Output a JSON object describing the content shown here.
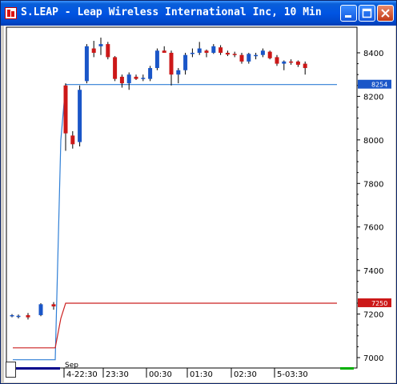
{
  "window": {
    "title": "S.LEAP - Leap Wireless International Inc, 10 Min",
    "controls": [
      "minimize",
      "maximize",
      "close"
    ]
  },
  "colors": {
    "up": "#1a56c8",
    "down": "#cc1818",
    "blue_line": "#2f7fd6",
    "red_line": "#cc2020",
    "axis": "#000000"
  },
  "icons": {
    "app": "chart-app-icon",
    "minimize": "minimize-icon",
    "maximize": "maximize-icon",
    "close": "close-icon"
  },
  "chart_data": {
    "type": "candlestick",
    "title": "S.LEAP - Leap Wireless International Inc, 10 Min",
    "y_axis": {
      "ticks": [
        "8400",
        "8200",
        "8000",
        "7800",
        "7600",
        "7400",
        "7200",
        "7000"
      ],
      "range": [
        6980,
        8520
      ]
    },
    "x_axis": {
      "labels": [
        "4-22:30",
        "23:30",
        "00:30",
        "01:30",
        "02:30",
        "5-03:30"
      ],
      "date_label": "Sep"
    },
    "price_tags": [
      {
        "label": "8254",
        "value": 8254,
        "color": "#1a56c8"
      },
      {
        "label": "7250",
        "value": 7250,
        "color": "#cc1818"
      }
    ],
    "candles": [
      {
        "o": 7190,
        "h": 7200,
        "l": 7185,
        "c": 7195
      },
      {
        "o": 7188,
        "h": 7198,
        "l": 7180,
        "c": 7192
      },
      {
        "o": 7195,
        "h": 7205,
        "l": 7175,
        "c": 7185
      },
      {
        "o": 7195,
        "h": 7250,
        "l": 7190,
        "c": 7245
      },
      {
        "o": 7245,
        "h": 7255,
        "l": 7220,
        "c": 7235
      },
      {
        "o": 8250,
        "h": 8260,
        "l": 7950,
        "c": 8030
      },
      {
        "o": 8020,
        "h": 8040,
        "l": 7960,
        "c": 7980
      },
      {
        "o": 7990,
        "h": 8250,
        "l": 7970,
        "c": 8230
      },
      {
        "o": 8270,
        "h": 8440,
        "l": 8260,
        "c": 8430
      },
      {
        "o": 8420,
        "h": 8455,
        "l": 8380,
        "c": 8400
      },
      {
        "o": 8430,
        "h": 8470,
        "l": 8390,
        "c": 8440
      },
      {
        "o": 8440,
        "h": 8450,
        "l": 8370,
        "c": 8380
      },
      {
        "o": 8380,
        "h": 8385,
        "l": 8270,
        "c": 8280
      },
      {
        "o": 8290,
        "h": 8300,
        "l": 8240,
        "c": 8260
      },
      {
        "o": 8260,
        "h": 8310,
        "l": 8230,
        "c": 8300
      },
      {
        "o": 8290,
        "h": 8300,
        "l": 8275,
        "c": 8280
      },
      {
        "o": 8280,
        "h": 8300,
        "l": 8270,
        "c": 8285
      },
      {
        "o": 8280,
        "h": 8340,
        "l": 8270,
        "c": 8330
      },
      {
        "o": 8330,
        "h": 8420,
        "l": 8320,
        "c": 8410
      },
      {
        "o": 8410,
        "h": 8430,
        "l": 8400,
        "c": 8400
      },
      {
        "o": 8400,
        "h": 8410,
        "l": 8250,
        "c": 8300
      },
      {
        "o": 8300,
        "h": 8330,
        "l": 8260,
        "c": 8320
      },
      {
        "o": 8320,
        "h": 8400,
        "l": 8300,
        "c": 8390
      },
      {
        "o": 8395,
        "h": 8420,
        "l": 8380,
        "c": 8400
      },
      {
        "o": 8400,
        "h": 8450,
        "l": 8390,
        "c": 8420
      },
      {
        "o": 8410,
        "h": 8415,
        "l": 8380,
        "c": 8400
      },
      {
        "o": 8400,
        "h": 8440,
        "l": 8395,
        "c": 8430
      },
      {
        "o": 8425,
        "h": 8435,
        "l": 8390,
        "c": 8400
      },
      {
        "o": 8400,
        "h": 8410,
        "l": 8385,
        "c": 8392
      },
      {
        "o": 8395,
        "h": 8405,
        "l": 8380,
        "c": 8390
      },
      {
        "o": 8390,
        "h": 8400,
        "l": 8350,
        "c": 8360
      },
      {
        "o": 8360,
        "h": 8400,
        "l": 8350,
        "c": 8395
      },
      {
        "o": 8385,
        "h": 8400,
        "l": 8370,
        "c": 8390
      },
      {
        "o": 8390,
        "h": 8420,
        "l": 8380,
        "c": 8410
      },
      {
        "o": 8405,
        "h": 8410,
        "l": 8370,
        "c": 8375
      },
      {
        "o": 8380,
        "h": 8390,
        "l": 8340,
        "c": 8350
      },
      {
        "o": 8350,
        "h": 8365,
        "l": 8320,
        "c": 8360
      },
      {
        "o": 8360,
        "h": 8370,
        "l": 8345,
        "c": 8355
      },
      {
        "o": 8360,
        "h": 8365,
        "l": 8335,
        "c": 8345
      },
      {
        "o": 8350,
        "h": 8360,
        "l": 8300,
        "c": 8330
      }
    ],
    "blue_line": [
      {
        "i": -9,
        "v": 6990
      },
      {
        "i": -1,
        "v": 6990
      },
      {
        "i": 0,
        "v": 8000
      },
      {
        "i": 1,
        "v": 8254
      },
      {
        "i": 40,
        "v": 8254
      }
    ],
    "red_line": [
      {
        "i": -9,
        "v": 7045
      },
      {
        "i": -1,
        "v": 7045
      },
      {
        "i": 0,
        "v": 7180
      },
      {
        "i": 1,
        "v": 7250
      },
      {
        "i": 40,
        "v": 7250
      }
    ],
    "legend": "none",
    "grid": false
  }
}
